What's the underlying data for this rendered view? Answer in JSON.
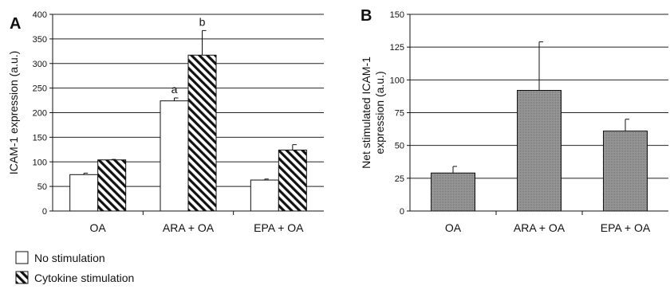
{
  "chart_data": [
    {
      "panel": "A",
      "type": "bar",
      "ylabel": "ICAM-1 expression (a.u.)",
      "ylim": [
        0,
        400
      ],
      "yticks": [
        0,
        50,
        100,
        150,
        200,
        250,
        300,
        350,
        400
      ],
      "grid": true,
      "categories": [
        "OA",
        "ARA  + OA",
        "EPA + OA"
      ],
      "series": [
        {
          "name": "No stimulation",
          "pattern": "open",
          "values": [
            74,
            224,
            63
          ],
          "errors": [
            3,
            6,
            2
          ]
        },
        {
          "name": "Cytokine stimulation",
          "pattern": "hatched",
          "values": [
            104,
            317,
            124
          ],
          "errors": [
            1,
            50,
            11
          ]
        }
      ],
      "annotations": [
        {
          "category": 1,
          "series": 0,
          "text": "a"
        },
        {
          "category": 1,
          "series": 1,
          "text": "b"
        }
      ]
    },
    {
      "panel": "B",
      "type": "bar",
      "ylabel": [
        "Net stimulated ICAM-1",
        "expression (a.u.)"
      ],
      "ylim": [
        0,
        150
      ],
      "yticks": [
        0,
        25,
        50,
        75,
        100,
        125,
        150
      ],
      "grid": true,
      "categories": [
        "OA",
        "ARA + OA",
        "EPA + OA"
      ],
      "series": [
        {
          "values": [
            29,
            92,
            61
          ],
          "errors": [
            5,
            37,
            9
          ]
        }
      ]
    }
  ],
  "legend": {
    "placement": "bottom-left",
    "items": [
      {
        "label": "No stimulation",
        "pattern": "open"
      },
      {
        "label": "Cytokine stimulation",
        "pattern": "hatched"
      }
    ]
  },
  "colors": {
    "axis": "#111111",
    "grid": "#222222",
    "bar_open": "#ffffff",
    "bar_gray": "#8c8c8c",
    "hatch": "#111111"
  }
}
